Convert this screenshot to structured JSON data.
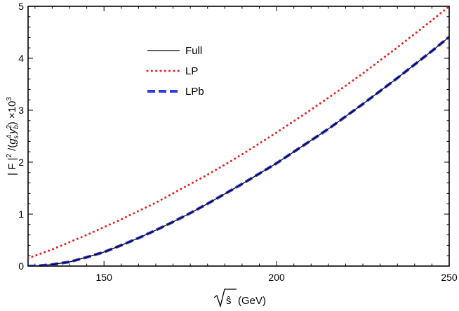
{
  "chart_data": {
    "type": "line",
    "title": "",
    "xlabel": "(GeV)",
    "ylabel": "|F|² /(g⁴ y²) ×10³",
    "ylabel_parts": {
      "lead": "| F |",
      "exp2": "2",
      "div": " /(",
      "g": "g",
      "g_sup": "4",
      "g_sub": "s",
      "y": "y",
      "y_sup": "2",
      "y_sub": "b",
      "close": ")",
      "times": " ×10",
      "times_sup": "3"
    },
    "xlabel_symbol": "ŝ",
    "xlim": [
      128,
      250
    ],
    "ylim": [
      0,
      5
    ],
    "x_ticks": [
      150,
      200,
      250
    ],
    "y_ticks": [
      0,
      1,
      2,
      3,
      4,
      5
    ],
    "grid": false,
    "legend_position": "upper-left",
    "x": [
      128,
      130,
      135,
      140,
      145,
      150,
      155,
      160,
      165,
      170,
      175,
      180,
      185,
      190,
      195,
      200,
      205,
      210,
      215,
      220,
      225,
      230,
      235,
      240,
      245,
      250
    ],
    "series": [
      {
        "name": "Full",
        "color": "#000000",
        "style": "solid",
        "values": [
          0.0,
          0.0,
          0.03,
          0.08,
          0.17,
          0.27,
          0.4,
          0.54,
          0.69,
          0.85,
          1.02,
          1.2,
          1.39,
          1.58,
          1.78,
          1.98,
          2.2,
          2.42,
          2.64,
          2.88,
          3.12,
          3.37,
          3.62,
          3.88,
          4.14,
          4.41
        ]
      },
      {
        "name": "LP",
        "color": "#e8211c",
        "style": "dotted",
        "values": [
          0.15,
          0.2,
          0.32,
          0.46,
          0.6,
          0.75,
          0.9,
          1.06,
          1.22,
          1.4,
          1.58,
          1.76,
          1.95,
          2.15,
          2.36,
          2.57,
          2.79,
          3.01,
          3.24,
          3.47,
          3.71,
          3.96,
          4.21,
          4.47,
          4.73,
          5.0
        ]
      },
      {
        "name": "LPb",
        "color": "#2f37e6",
        "style": "dashed",
        "values": [
          0.0,
          0.0,
          0.03,
          0.08,
          0.17,
          0.27,
          0.4,
          0.54,
          0.69,
          0.85,
          1.02,
          1.2,
          1.39,
          1.58,
          1.78,
          1.98,
          2.2,
          2.42,
          2.64,
          2.88,
          3.12,
          3.37,
          3.62,
          3.88,
          4.14,
          4.41
        ]
      }
    ]
  }
}
